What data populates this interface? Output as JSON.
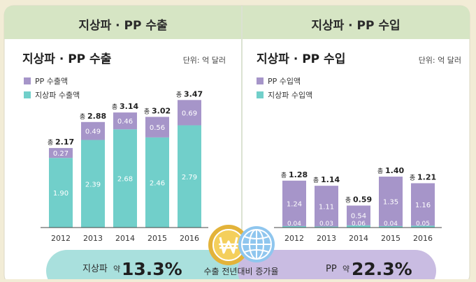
{
  "header": {
    "left_title": "지상파 · PP 수출",
    "right_title": "지상파 · PP 수입"
  },
  "colors": {
    "pp": "#a695c9",
    "terrestrial": "#71cfca",
    "header_bg": "#d6e5c4",
    "bottom_left": "#a9e0dd",
    "bottom_right": "#c9bce2"
  },
  "chart_data": [
    {
      "type": "bar",
      "stacked": true,
      "title": "지상파 · PP 수출",
      "unit": "단위: 억 달러",
      "categories": [
        "2012",
        "2013",
        "2014",
        "2015",
        "2016"
      ],
      "series": [
        {
          "name": "지상파 수출액",
          "values": [
            1.9,
            2.39,
            2.68,
            2.46,
            2.79
          ],
          "labels": [
            "1.90",
            "2.39",
            "2.68",
            "2.46",
            "2.79"
          ]
        },
        {
          "name": "PP 수출액",
          "values": [
            0.27,
            0.49,
            0.46,
            0.56,
            0.69
          ],
          "labels": [
            "0.27",
            "0.49",
            "0.46",
            "0.56",
            "0.69"
          ]
        }
      ],
      "total_prefix": "총",
      "totals": [
        "2.17",
        "2.88",
        "3.14",
        "3.02",
        "3.47"
      ]
    },
    {
      "type": "bar",
      "stacked": true,
      "title": "지상파 · PP 수입",
      "unit": "단위: 억 달러",
      "categories": [
        "2012",
        "2013",
        "2014",
        "2015",
        "2016"
      ],
      "series": [
        {
          "name": "지상파 수입액",
          "values": [
            0.04,
            0.03,
            0.06,
            0.04,
            0.05
          ],
          "labels": [
            "0.04",
            "0.03",
            "0.06",
            "0.04",
            "0.05"
          ]
        },
        {
          "name": "PP 수입액",
          "values": [
            1.24,
            1.11,
            0.54,
            1.35,
            1.16
          ],
          "labels": [
            "1.24",
            "1.11",
            "0.54",
            "1.35",
            "1.16"
          ]
        }
      ],
      "total_prefix": "총",
      "totals": [
        "1.28",
        "1.14",
        "0.59",
        "1.40",
        "1.21"
      ]
    }
  ],
  "bottom": {
    "left_label": "지상파",
    "left_prefix": "약",
    "left_value": "13.3%",
    "center_label": "수출 전년대비 증가율",
    "right_label": "PP",
    "right_prefix": "약",
    "right_value": "22.3%"
  },
  "icons": [
    "won-coin-icon",
    "globe-icon"
  ]
}
